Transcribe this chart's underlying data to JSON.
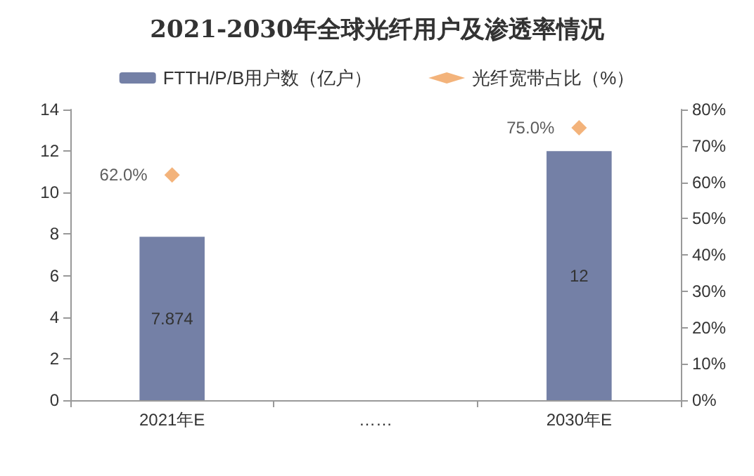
{
  "chart_data": {
    "type": "bar",
    "title": "2021-2030年全球光纤用户及渗透率情况",
    "categories": [
      "2021年E",
      "……",
      "2030年E"
    ],
    "series": [
      {
        "name": "FTTH/P/B用户数（亿户）",
        "color": "#7480a6",
        "values": [
          7.874,
          null,
          12
        ],
        "value_labels": [
          "7.874",
          null,
          "12"
        ]
      },
      {
        "name": "光纤宽带占比（%）",
        "type": "scatter",
        "axis": "y2",
        "color": "#f0a05a",
        "marker": "diamond",
        "values": [
          62.0,
          null,
          75.0
        ],
        "value_labels": [
          "62.0%",
          null,
          "75.0%"
        ]
      }
    ],
    "ylim": [
      0,
      14
    ],
    "yticks": [
      0,
      2,
      4,
      6,
      8,
      10,
      12,
      14
    ],
    "y2lim": [
      0,
      80
    ],
    "y2ticks": [
      {
        "value": 0,
        "label": "0%"
      },
      {
        "value": 10,
        "label": "10%"
      },
      {
        "value": 20,
        "label": "20%"
      },
      {
        "value": 30,
        "label": "30%"
      },
      {
        "value": 40,
        "label": "40%"
      },
      {
        "value": 50,
        "label": "50%"
      },
      {
        "value": 60,
        "label": "60%"
      },
      {
        "value": 70,
        "label": "70%"
      },
      {
        "value": 80,
        "label": "80%"
      }
    ],
    "grid": false,
    "legend": "top"
  }
}
